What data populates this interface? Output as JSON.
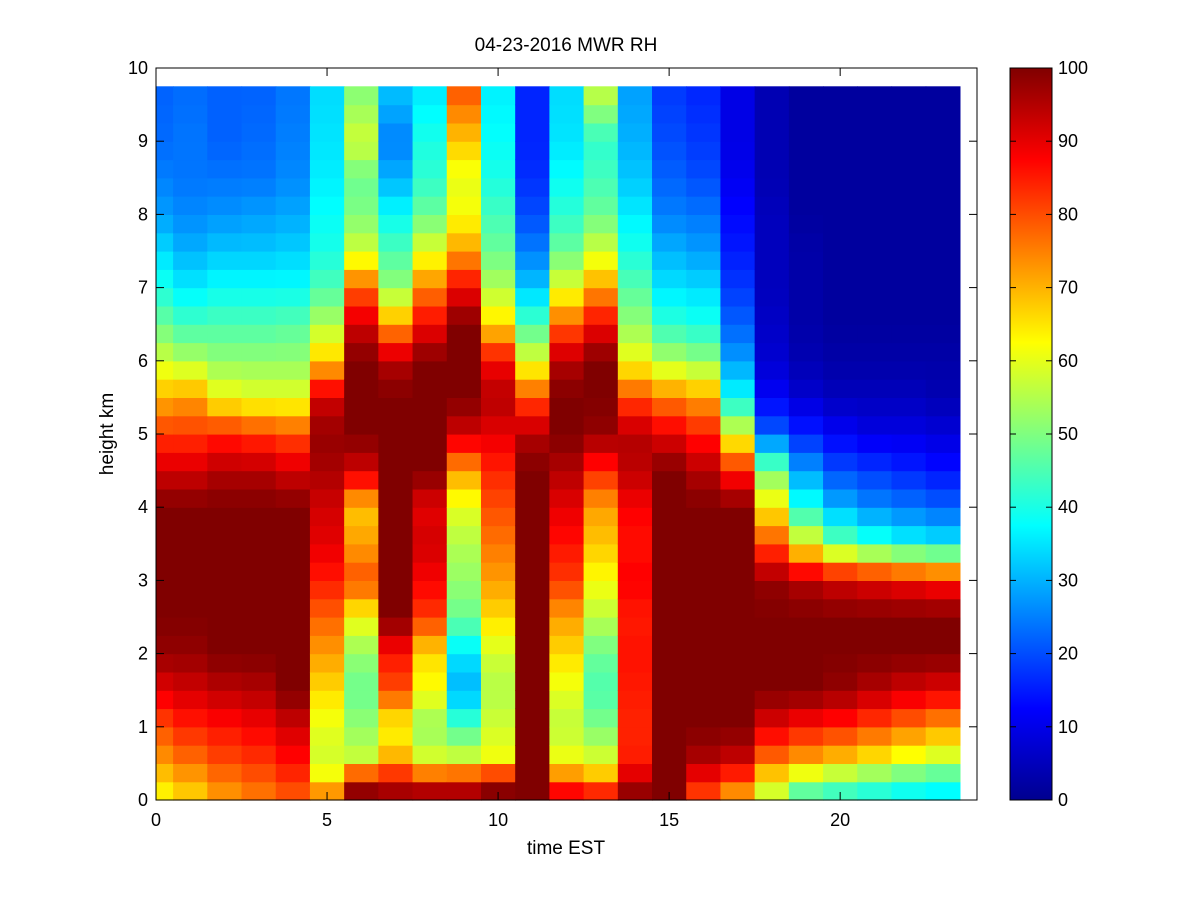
{
  "chart_data": {
    "type": "heatmap",
    "title": "04-23-2016 MWR RH",
    "xlabel": "time EST",
    "ylabel": "height km",
    "xlim": [
      0,
      24
    ],
    "ylim": [
      0,
      10
    ],
    "x_ticks": [
      0,
      5,
      10,
      15,
      20
    ],
    "y_ticks": [
      0,
      1,
      2,
      3,
      4,
      5,
      6,
      7,
      8,
      9,
      10
    ],
    "colorbar": {
      "range": [
        0,
        100
      ],
      "ticks": [
        0,
        10,
        20,
        30,
        40,
        50,
        60,
        70,
        80,
        90,
        100
      ],
      "colormap": "jet"
    },
    "grid": false,
    "x_time_hours": [
      0,
      1,
      2,
      3,
      4,
      5,
      6,
      7,
      8,
      9,
      10,
      11,
      12,
      13,
      14,
      15,
      16,
      17,
      18,
      19,
      20,
      21,
      22,
      23
    ],
    "height_top_km": 9.75,
    "rh_profiles_node_heights_km": [
      0,
      0.25,
      0.5,
      1,
      1.5,
      2,
      2.5,
      3,
      3.5,
      4,
      4.5,
      5,
      5.5,
      6,
      6.5,
      7,
      7.5,
      8,
      8.5,
      9,
      9.75
    ],
    "rh_profiles": [
      [
        62,
        66,
        72,
        80,
        90,
        98,
        100,
        100,
        100,
        100,
        92,
        82,
        70,
        58,
        48,
        40,
        34,
        28,
        25,
        23,
        22
      ],
      [
        66,
        70,
        76,
        84,
        92,
        98,
        100,
        100,
        100,
        100,
        92,
        82,
        72,
        55,
        44,
        36,
        30,
        26,
        24,
        24,
        23
      ],
      [
        72,
        75,
        80,
        86,
        94,
        100,
        100,
        100,
        100,
        100,
        95,
        84,
        62,
        52,
        45,
        38,
        32,
        27,
        24,
        22,
        22
      ],
      [
        75,
        78,
        82,
        88,
        95,
        100,
        100,
        100,
        100,
        100,
        95,
        82,
        60,
        52,
        45,
        38,
        32,
        28,
        24,
        23,
        22
      ],
      [
        78,
        82,
        86,
        92,
        100,
        100,
        100,
        100,
        100,
        100,
        92,
        80,
        60,
        52,
        46,
        38,
        33,
        29,
        26,
        25,
        24
      ],
      [
        80,
        65,
        58,
        60,
        66,
        72,
        78,
        85,
        90,
        92,
        96,
        98,
        92,
        68,
        55,
        45,
        40,
        38,
        36,
        35,
        34
      ],
      [
        100,
        96,
        58,
        52,
        48,
        52,
        62,
        80,
        72,
        68,
        92,
        100,
        100,
        100,
        92,
        78,
        58,
        50,
        48,
        58,
        50
      ],
      [
        100,
        92,
        72,
        62,
        80,
        86,
        100,
        100,
        100,
        100,
        100,
        100,
        100,
        95,
        72,
        52,
        45,
        38,
        30,
        25,
        32
      ],
      [
        100,
        90,
        60,
        52,
        62,
        66,
        82,
        88,
        92,
        90,
        100,
        100,
        100,
        100,
        88,
        75,
        60,
        48,
        42,
        40,
        35
      ],
      [
        98,
        92,
        60,
        45,
        30,
        35,
        48,
        52,
        55,
        60,
        72,
        92,
        100,
        100,
        100,
        88,
        72,
        62,
        60,
        68,
        80
      ],
      [
        100,
        98,
        62,
        58,
        55,
        58,
        66,
        72,
        76,
        80,
        84,
        90,
        95,
        88,
        66,
        55,
        48,
        44,
        40,
        38,
        36
      ],
      [
        100,
        100,
        100,
        100,
        100,
        100,
        100,
        100,
        100,
        100,
        100,
        95,
        80,
        60,
        45,
        32,
        25,
        20,
        17,
        16,
        16
      ],
      [
        92,
        82,
        62,
        56,
        60,
        66,
        72,
        82,
        86,
        90,
        95,
        100,
        100,
        95,
        78,
        60,
        48,
        42,
        38,
        35,
        34
      ],
      [
        92,
        75,
        60,
        50,
        45,
        48,
        56,
        62,
        68,
        72,
        84,
        98,
        100,
        100,
        88,
        72,
        58,
        48,
        44,
        42,
        58
      ],
      [
        100,
        95,
        85,
        84,
        85,
        86,
        85,
        88,
        86,
        88,
        94,
        95,
        80,
        62,
        52,
        46,
        40,
        36,
        32,
        30,
        28
      ],
      [
        100,
        100,
        100,
        100,
        100,
        100,
        100,
        100,
        100,
        100,
        100,
        90,
        75,
        55,
        42,
        35,
        30,
        25,
        22,
        20,
        18
      ],
      [
        80,
        85,
        95,
        100,
        100,
        100,
        100,
        100,
        100,
        100,
        95,
        85,
        72,
        52,
        40,
        34,
        28,
        24,
        20,
        18,
        16
      ],
      [
        70,
        78,
        92,
        100,
        100,
        100,
        100,
        100,
        100,
        100,
        85,
        60,
        38,
        28,
        22,
        18,
        15,
        13,
        11,
        10,
        10
      ],
      [
        55,
        62,
        75,
        90,
        100,
        100,
        100,
        98,
        80,
        64,
        50,
        22,
        12,
        8,
        7,
        6,
        6,
        6,
        5,
        5,
        5
      ],
      [
        42,
        52,
        70,
        86,
        100,
        100,
        100,
        95,
        62,
        40,
        28,
        16,
        8,
        5,
        4,
        4,
        4,
        3,
        3,
        3,
        3
      ],
      [
        40,
        48,
        66,
        84,
        98,
        100,
        100,
        92,
        48,
        30,
        20,
        12,
        6,
        4,
        3,
        3,
        3,
        3,
        3,
        3,
        3
      ],
      [
        38,
        45,
        62,
        80,
        95,
        100,
        100,
        90,
        42,
        26,
        18,
        10,
        6,
        4,
        3,
        3,
        3,
        3,
        3,
        3,
        3
      ],
      [
        36,
        42,
        58,
        76,
        92,
        100,
        100,
        88,
        38,
        24,
        16,
        10,
        6,
        4,
        3,
        3,
        3,
        3,
        3,
        3,
        3
      ],
      [
        35,
        40,
        55,
        72,
        90,
        100,
        100,
        86,
        36,
        22,
        14,
        9,
        5,
        4,
        3,
        3,
        3,
        3,
        3,
        3,
        3
      ]
    ]
  }
}
